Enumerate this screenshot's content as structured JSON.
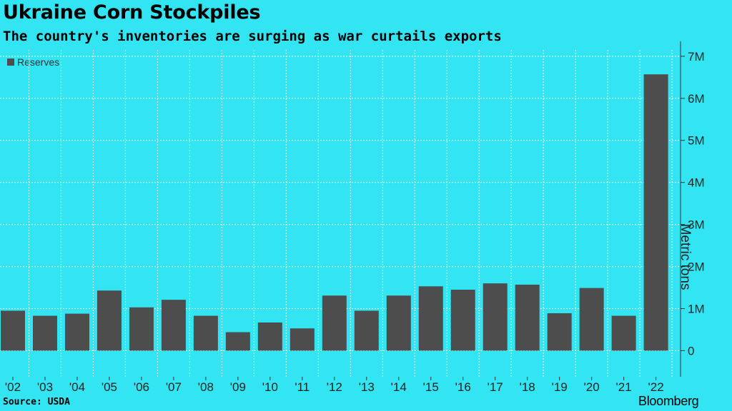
{
  "title": "Ukraine Corn Stockpiles",
  "subtitle": "The country's inventories are surging as war curtails exports",
  "source": "Source: USDA",
  "brand": "Bloomberg",
  "colors": {
    "background": "#33e5f2",
    "bar": "#4d4d4d"
  },
  "chart_data": {
    "type": "bar",
    "categories": [
      "'02",
      "'03",
      "'04",
      "'05",
      "'06",
      "'07",
      "'08",
      "'09",
      "'10",
      "'11",
      "'12",
      "'13",
      "'14",
      "'15",
      "'16",
      "'17",
      "'18",
      "'19",
      "'20",
      "'21",
      "'22"
    ],
    "series": [
      {
        "name": "Reserves",
        "values": [
          0.95,
          0.83,
          0.88,
          1.43,
          1.03,
          1.21,
          0.83,
          0.44,
          0.67,
          0.53,
          1.31,
          0.95,
          1.31,
          1.53,
          1.45,
          1.6,
          1.57,
          0.89,
          1.49,
          0.83,
          6.57
        ]
      }
    ],
    "ylabel": "Metric tons",
    "ylim": [
      -0.62,
      7.15
    ],
    "yticks": [
      0,
      1,
      2,
      3,
      4,
      5,
      6,
      7
    ],
    "ytick_labels": [
      "0",
      "1M",
      "2M",
      "3M",
      "4M",
      "5M",
      "6M",
      "7M"
    ],
    "grid": true,
    "legend_position": "top-left",
    "y_axis_side": "right"
  }
}
